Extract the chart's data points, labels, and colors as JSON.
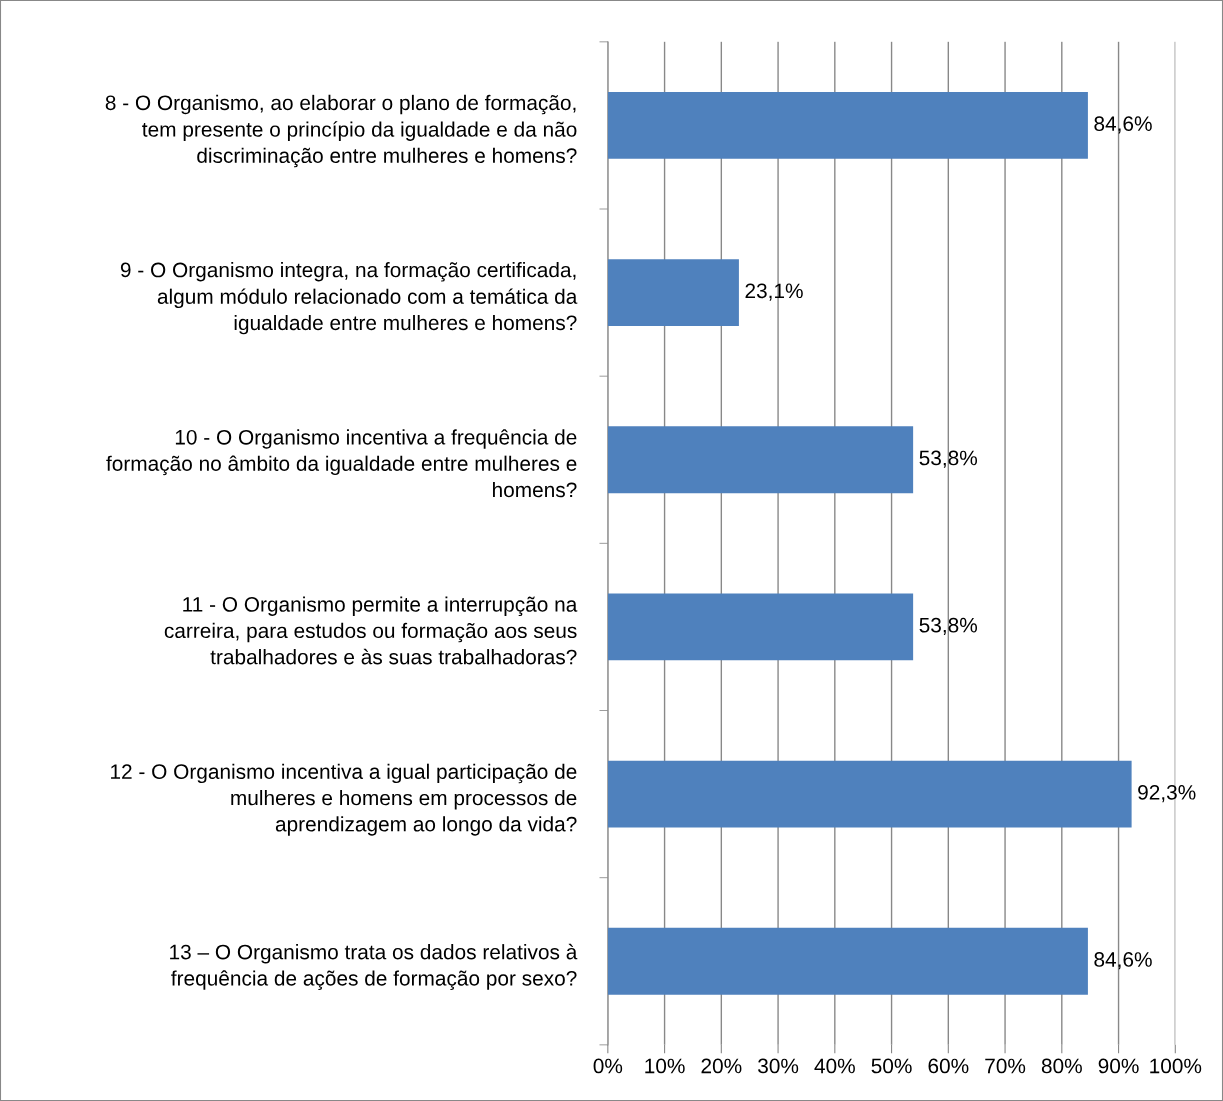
{
  "chart_data": {
    "type": "bar",
    "orientation": "horizontal",
    "categories": [
      "8 - O Organismo, ao elaborar o plano de formação,\ntem presente o princípio da igualdade e da não\ndiscriminação entre mulheres e homens?",
      "9 - O Organismo integra, na formação certificada,\nalgum módulo relacionado com a temática da\nigualdade entre mulheres e homens?",
      "10 - O Organismo incentiva a frequência de\nformação no âmbito da igualdade entre mulheres e\nhomens?",
      "11 - O Organismo permite a interrupção na\ncarreira, para estudos ou formação aos seus\ntrabalhadores e às suas trabalhadoras?",
      "12 - O Organismo incentiva a igual participação de\nmulheres e homens em processos de\naprendizagem ao longo da vida?",
      "13 – O Organismo trata os dados relativos à\nfrequência de ações de formação por sexo?"
    ],
    "values": [
      84.6,
      23.1,
      53.8,
      53.8,
      92.3,
      84.6
    ],
    "value_labels": [
      "84,6%",
      "23,1%",
      "53,8%",
      "53,8%",
      "92,3%",
      "84,6%"
    ],
    "color": "#4f81bd",
    "xlim": [
      0,
      100
    ],
    "xticks": [
      {
        "value": 0,
        "label": "0%"
      },
      {
        "value": 10,
        "label": "10%"
      },
      {
        "value": 20,
        "label": "20%"
      },
      {
        "value": 30,
        "label": "30%"
      },
      {
        "value": 40,
        "label": "40%"
      },
      {
        "value": 50,
        "label": "50%"
      },
      {
        "value": 60,
        "label": "60%"
      },
      {
        "value": 70,
        "label": "70%"
      },
      {
        "value": 80,
        "label": "80%"
      },
      {
        "value": 90,
        "label": "90%"
      },
      {
        "value": 100,
        "label": "100%"
      }
    ],
    "grid": "x",
    "legend": false
  }
}
